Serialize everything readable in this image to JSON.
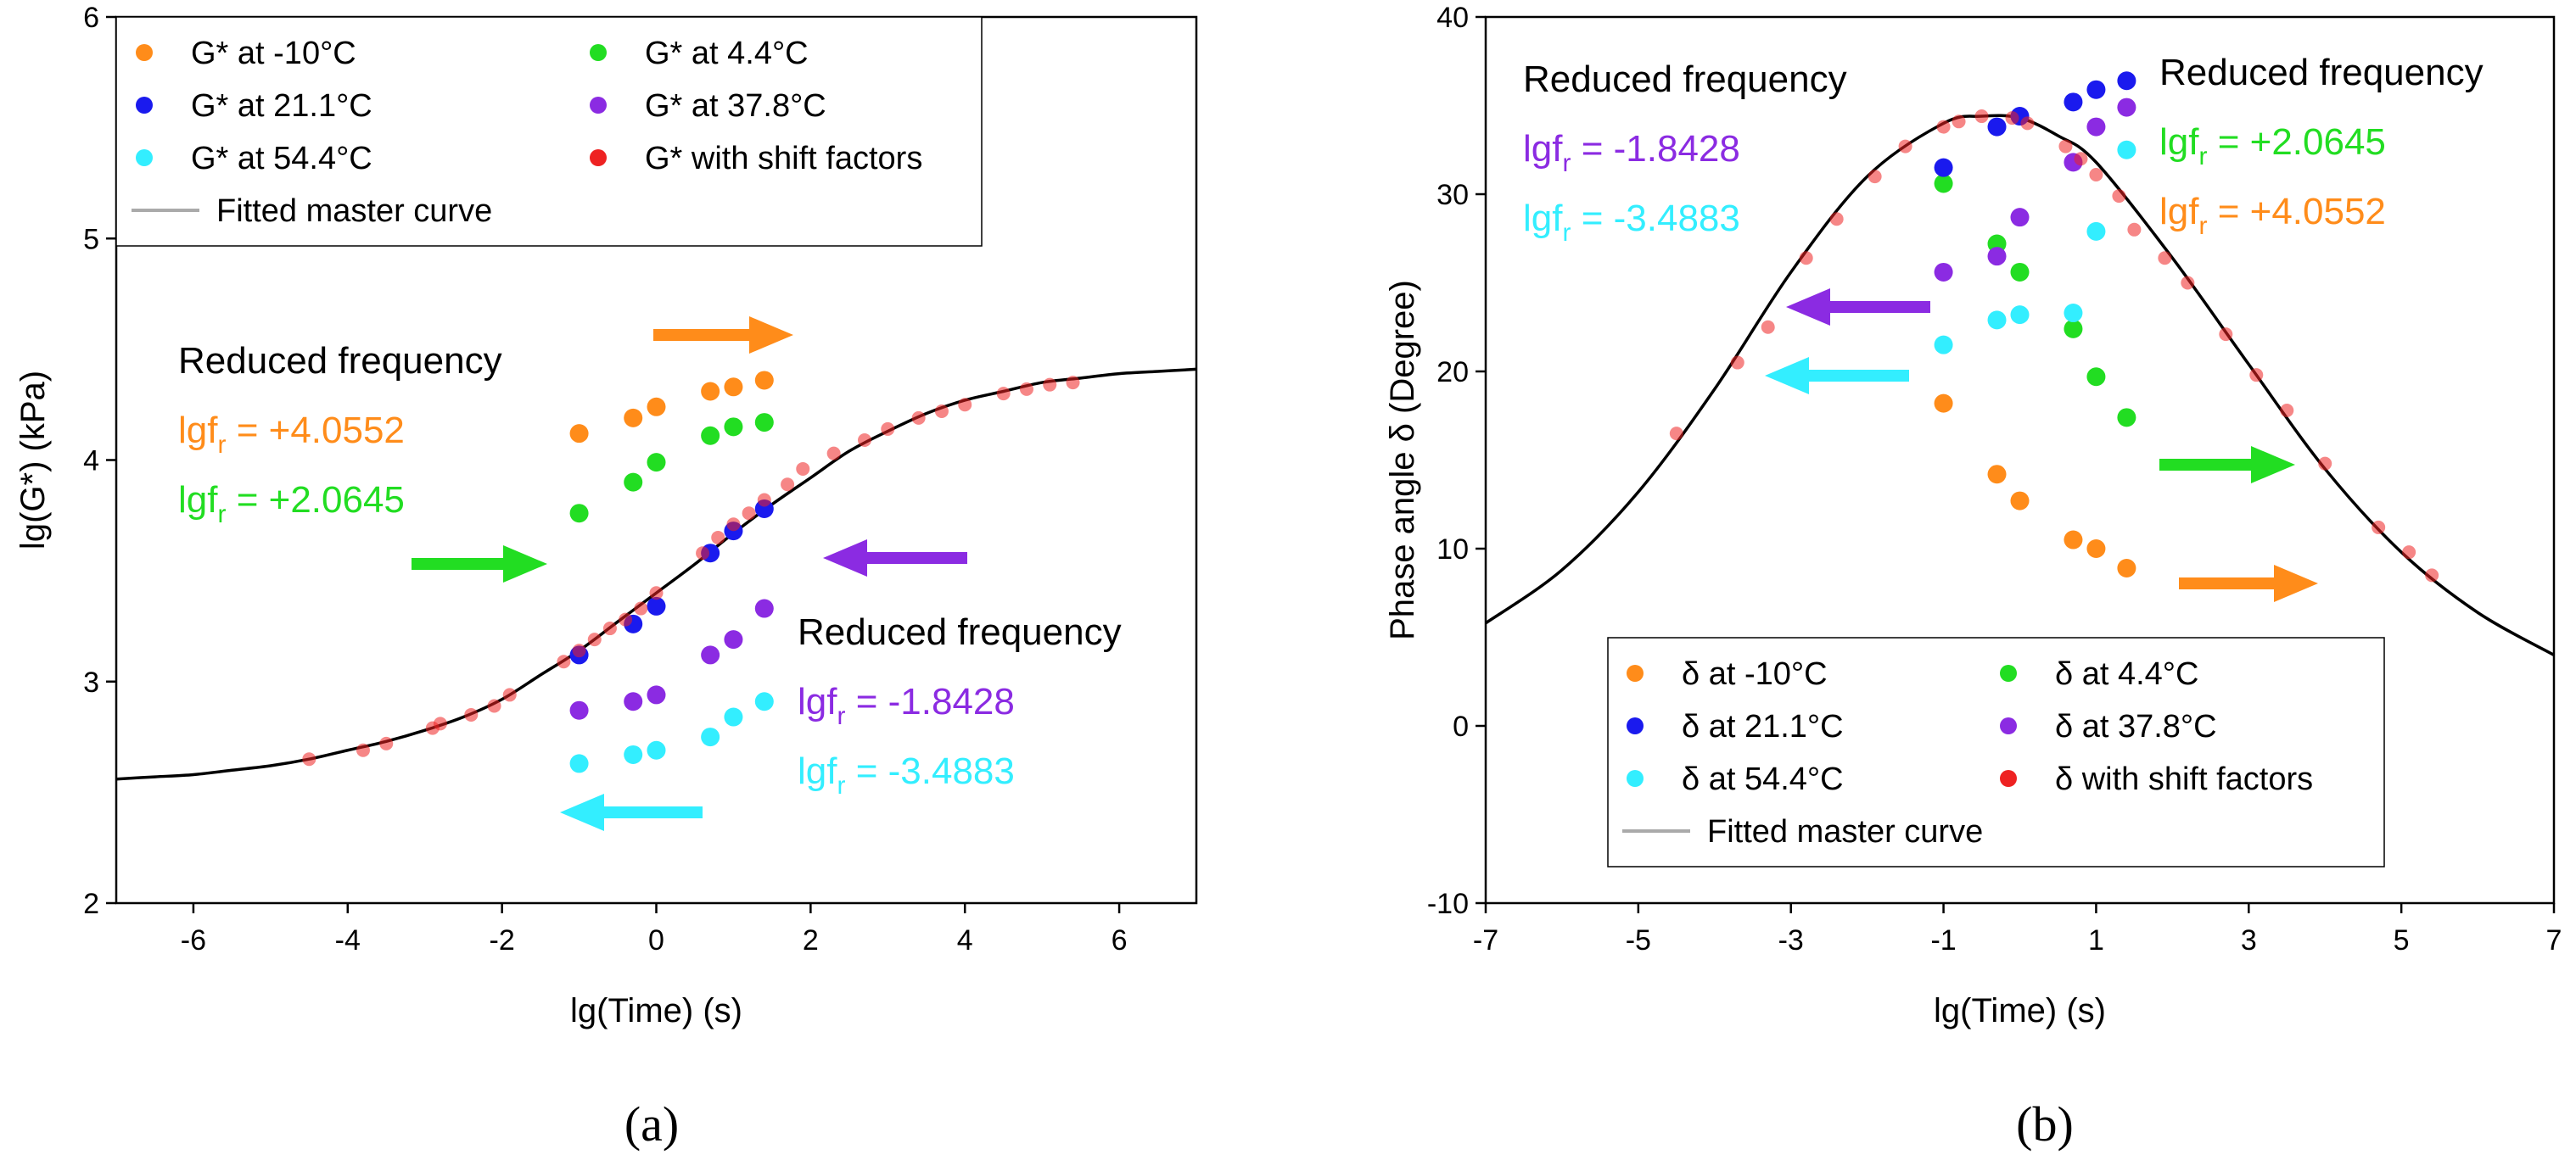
{
  "chart_data": [
    {
      "type": "scatter",
      "panel_label": "(a)",
      "xlabel": "lg(Time) (s)",
      "ylabel": "lg(G*) (kPa)",
      "xlim": [
        -7,
        7
      ],
      "ylim": [
        2,
        6
      ],
      "xticks": [
        -6,
        -4,
        -2,
        0,
        2,
        4,
        6
      ],
      "yticks": [
        2,
        3,
        4,
        5,
        6
      ],
      "legend_position": "top-left",
      "series": [
        {
          "name": "G* at -10°C",
          "color": "#ff8c1a",
          "x": [
            -1.0,
            -0.3,
            0.0,
            0.7,
            1.0,
            1.4
          ],
          "y": [
            4.12,
            4.19,
            4.24,
            4.31,
            4.33,
            4.36
          ]
        },
        {
          "name": "G* at 4.4°C",
          "color": "#22dd22",
          "x": [
            -1.0,
            -0.3,
            0.0,
            0.7,
            1.0,
            1.4
          ],
          "y": [
            3.76,
            3.9,
            3.99,
            4.11,
            4.15,
            4.17
          ]
        },
        {
          "name": "G* at 21.1°C",
          "color": "#1a1aee",
          "x": [
            -1.0,
            -0.3,
            0.0,
            0.7,
            1.0,
            1.4
          ],
          "y": [
            3.12,
            3.26,
            3.34,
            3.58,
            3.68,
            3.78
          ]
        },
        {
          "name": "G* at 37.8°C",
          "color": "#8b2be2",
          "x": [
            -1.0,
            -0.3,
            0.0,
            0.7,
            1.0,
            1.4
          ],
          "y": [
            2.87,
            2.91,
            2.94,
            3.12,
            3.19,
            3.33
          ]
        },
        {
          "name": "G* at 54.4°C",
          "color": "#33eeff",
          "x": [
            -1.0,
            -0.3,
            0.0,
            0.7,
            1.0,
            1.4
          ],
          "y": [
            2.63,
            2.67,
            2.69,
            2.75,
            2.84,
            2.91
          ]
        },
        {
          "name": "G* with shift factors",
          "color": "#ee2222",
          "x": [
            -4.5,
            -3.8,
            -3.5,
            -2.9,
            -2.8,
            -2.4,
            -2.1,
            -1.9,
            -1.2,
            -1.0,
            -0.8,
            -0.6,
            -0.4,
            -0.2,
            0.0,
            0.6,
            0.8,
            1.0,
            1.2,
            1.4,
            1.7,
            1.9,
            2.3,
            2.7,
            3.0,
            3.4,
            3.7,
            4.0,
            4.5,
            4.8,
            5.1,
            5.4
          ],
          "y": [
            2.65,
            2.69,
            2.72,
            2.79,
            2.81,
            2.85,
            2.89,
            2.94,
            3.09,
            3.14,
            3.19,
            3.24,
            3.28,
            3.33,
            3.4,
            3.58,
            3.65,
            3.71,
            3.76,
            3.82,
            3.89,
            3.96,
            4.03,
            4.09,
            4.14,
            4.19,
            4.22,
            4.25,
            4.3,
            4.32,
            4.34,
            4.35
          ]
        },
        {
          "name": "Fitted master curve",
          "type": "line",
          "color": "#000000",
          "x": [
            -7,
            -6.5,
            -6,
            -5.5,
            -5,
            -4.5,
            -4,
            -3.5,
            -3,
            -2.5,
            -2,
            -1.5,
            -1,
            -0.5,
            0,
            0.5,
            1,
            1.5,
            2,
            2.5,
            3,
            3.5,
            4,
            4.5,
            5,
            5.5,
            6,
            6.5,
            7
          ],
          "y": [
            2.56,
            2.57,
            2.58,
            2.6,
            2.62,
            2.65,
            2.69,
            2.73,
            2.78,
            2.84,
            2.92,
            3.03,
            3.14,
            3.27,
            3.4,
            3.53,
            3.67,
            3.8,
            3.92,
            4.04,
            4.13,
            4.21,
            4.27,
            4.31,
            4.35,
            4.37,
            4.39,
            4.4,
            4.41
          ]
        }
      ],
      "annotations": [
        {
          "lines": [
            "Reduced frequency",
            "lgf",
            "lgf"
          ],
          "values": [
            "",
            " = +4.0552",
            " = +2.0645"
          ],
          "colors": [
            "#000000",
            "#ff8c1a",
            "#22dd22"
          ]
        },
        {
          "lines": [
            "Reduced frequency",
            "lgf",
            "lgf"
          ],
          "values": [
            "",
            " = -1.8428",
            " = -3.4883"
          ],
          "colors": [
            "#000000",
            "#8b2be2",
            "#33eeff"
          ]
        }
      ],
      "arrows": [
        {
          "color": "#ff8c1a",
          "direction": "right"
        },
        {
          "color": "#22dd22",
          "direction": "right"
        },
        {
          "color": "#8b2be2",
          "direction": "left"
        },
        {
          "color": "#33eeff",
          "direction": "left"
        }
      ]
    },
    {
      "type": "scatter",
      "panel_label": "(b)",
      "xlabel": "lg(Time) (s)",
      "ylabel": "Phase angle δ (Degree)",
      "xlim": [
        -7,
        7
      ],
      "ylim": [
        -10,
        40
      ],
      "xticks": [
        -7,
        -5,
        -3,
        -1,
        1,
        3,
        5,
        7
      ],
      "yticks": [
        -10,
        0,
        10,
        20,
        30,
        40
      ],
      "legend_position": "bottom-left",
      "series": [
        {
          "name": "δ at -10°C",
          "color": "#ff8c1a",
          "x": [
            -1.0,
            -0.3,
            0.0,
            0.7,
            1.0,
            1.4
          ],
          "y": [
            18.2,
            14.2,
            12.7,
            10.5,
            10.0,
            8.9
          ]
        },
        {
          "name": "δ at 4.4°C",
          "color": "#22dd22",
          "x": [
            -1.0,
            -0.3,
            0.0,
            0.7,
            1.0,
            1.4
          ],
          "y": [
            30.6,
            27.2,
            25.6,
            22.4,
            19.7,
            17.4
          ]
        },
        {
          "name": "δ at 21.1°C",
          "color": "#1a1aee",
          "x": [
            -1.0,
            -0.3,
            0.0,
            0.7,
            1.0,
            1.4
          ],
          "y": [
            31.5,
            33.8,
            34.4,
            35.2,
            35.9,
            36.4
          ]
        },
        {
          "name": "δ at 37.8°C",
          "color": "#8b2be2",
          "x": [
            -1.0,
            -0.3,
            0.0,
            0.7,
            1.0,
            1.4
          ],
          "y": [
            25.6,
            26.5,
            28.7,
            31.8,
            33.8,
            34.9
          ]
        },
        {
          "name": "δ at 54.4°C",
          "color": "#33eeff",
          "x": [
            -1.0,
            -0.3,
            0.0,
            0.7,
            1.0,
            1.4
          ],
          "y": [
            21.5,
            22.9,
            23.2,
            23.3,
            27.9,
            32.5
          ]
        },
        {
          "name": "δ with shift factors",
          "color": "#ee2222",
          "x": [
            -4.5,
            -3.7,
            -3.3,
            -2.8,
            -2.4,
            -1.9,
            -1.5,
            -1.0,
            -0.8,
            -0.5,
            -0.1,
            0.1,
            0.6,
            0.8,
            1.0,
            1.3,
            1.5,
            1.9,
            2.2,
            2.7,
            3.1,
            3.5,
            4.0,
            4.7,
            5.1,
            5.4
          ],
          "y": [
            16.5,
            20.5,
            22.5,
            26.4,
            28.6,
            31.0,
            32.7,
            33.8,
            34.1,
            34.4,
            34.3,
            34.0,
            32.7,
            32.0,
            31.1,
            29.9,
            28.0,
            26.4,
            25.0,
            22.1,
            19.8,
            17.8,
            14.8,
            11.2,
            9.8,
            8.5
          ]
        },
        {
          "name": "Fitted master curve",
          "type": "line",
          "color": "#000000",
          "x": [
            -7,
            -6,
            -5,
            -4,
            -3,
            -2,
            -1,
            -0.5,
            0,
            0.5,
            1,
            2,
            3,
            4,
            5,
            6,
            7
          ],
          "y": [
            5.8,
            8.8,
            13.2,
            19.0,
            25.6,
            31.0,
            34.0,
            34.4,
            34.3,
            33.3,
            31.8,
            26.4,
            20.4,
            14.5,
            9.8,
            6.4,
            4.0
          ]
        }
      ],
      "annotations": [
        {
          "lines": [
            "Reduced frequency",
            "lgf",
            "lgf"
          ],
          "values": [
            "",
            " = -1.8428",
            " = -3.4883"
          ],
          "colors": [
            "#000000",
            "#8b2be2",
            "#33eeff"
          ]
        },
        {
          "lines": [
            "Reduced frequency",
            "lgf",
            "lgf"
          ],
          "values": [
            "",
            " = +2.0645",
            " = +4.0552"
          ],
          "colors": [
            "#000000",
            "#22dd22",
            "#ff8c1a"
          ]
        }
      ],
      "arrows": [
        {
          "color": "#8b2be2",
          "direction": "left"
        },
        {
          "color": "#33eeff",
          "direction": "left"
        },
        {
          "color": "#22dd22",
          "direction": "right"
        },
        {
          "color": "#ff8c1a",
          "direction": "right"
        }
      ]
    }
  ]
}
